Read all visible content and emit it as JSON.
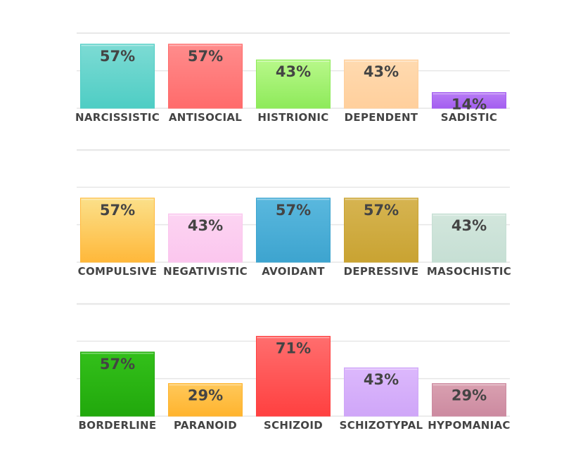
{
  "chart_data": [
    {
      "type": "bar",
      "categories": [
        "NARCISSISTIC",
        "ANTISOCIAL",
        "HISTRIONIC",
        "DEPENDENT",
        "SADISTIC"
      ],
      "values": [
        57,
        57,
        43,
        43,
        14
      ],
      "value_labels": [
        "57%",
        "57%",
        "43%",
        "43%",
        "14%"
      ],
      "colors": [
        [
          "#7ddbd4",
          "#4ecdc4"
        ],
        [
          "#ff8c8c",
          "#ff6b6b"
        ],
        [
          "#b8f88a",
          "#8eea5a"
        ],
        [
          "#ffdab0",
          "#ffcf9c"
        ],
        [
          "#b87cf5",
          "#a45ef0"
        ]
      ],
      "ylim": [
        0,
        100
      ],
      "grid": true
    },
    {
      "type": "bar",
      "categories": [
        "COMPULSIVE",
        "NEGATIVISTIC",
        "AVOIDANT",
        "DEPRESSIVE",
        "MASOCHISTIC"
      ],
      "values": [
        57,
        43,
        57,
        57,
        43
      ],
      "value_labels": [
        "57%",
        "43%",
        "57%",
        "57%",
        "43%"
      ],
      "colors": [
        [
          "#fbe08a",
          "#ffb83a"
        ],
        [
          "#fcd4f2",
          "#fbc6ee"
        ],
        [
          "#5ab8de",
          "#3da4cf"
        ],
        [
          "#d6b451",
          "#c9a332"
        ],
        [
          "#d2e6dc",
          "#c6dfd4"
        ]
      ],
      "ylim": [
        0,
        100
      ],
      "grid": true
    },
    {
      "type": "bar",
      "categories": [
        "BORDERLINE",
        "PARANOID",
        "SCHIZOID",
        "SCHIZOTYPAL",
        "HYPOMANIAC"
      ],
      "values": [
        57,
        29,
        71,
        43,
        29
      ],
      "value_labels": [
        "57%",
        "29%",
        "71%",
        "43%",
        "29%"
      ],
      "colors": [
        [
          "#33c01a",
          "#21a80c"
        ],
        [
          "#ffc85a",
          "#ffb42e"
        ],
        [
          "#ff6e6e",
          "#ff4040"
        ],
        [
          "#dcb8fc",
          "#cfa6f8"
        ],
        [
          "#d9a0b0",
          "#cc8aa0"
        ]
      ],
      "ylim": [
        0,
        100
      ],
      "grid": true
    }
  ]
}
